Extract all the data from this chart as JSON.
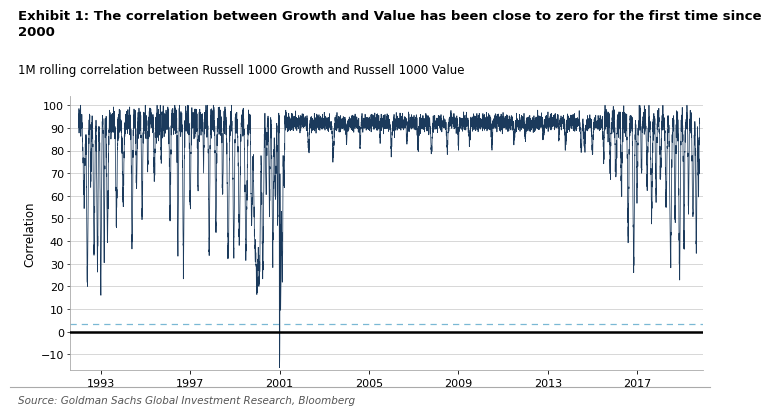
{
  "title_bold": "Exhibit 1: The correlation between Growth and Value has been close to zero for the first time since\n2000",
  "subtitle": "1M rolling correlation between Russell 1000 Growth and Russell 1000 Value",
  "ylabel": "Correlation",
  "source": "Source: Goldman Sachs Global Investment Research, Bloomberg",
  "line_color": "#1b3a5c",
  "dashed_line_color": "#7ab8d4",
  "dashed_line_value": 3.5,
  "zero_line_color": "#000000",
  "background_color": "#ffffff",
  "grid_color": "#c8c8c8",
  "ylim": [
    -17,
    104
  ],
  "yticks": [
    -10,
    0,
    10,
    20,
    30,
    40,
    50,
    60,
    70,
    80,
    90,
    100
  ],
  "xtick_years": [
    1993,
    1997,
    2001,
    2005,
    2009,
    2013,
    2017
  ],
  "year_start": 1991.6,
  "year_end": 2019.95,
  "title_fontsize": 9.5,
  "subtitle_fontsize": 8.5,
  "axis_fontsize": 8.5,
  "tick_fontsize": 8.0,
  "source_fontsize": 7.5
}
